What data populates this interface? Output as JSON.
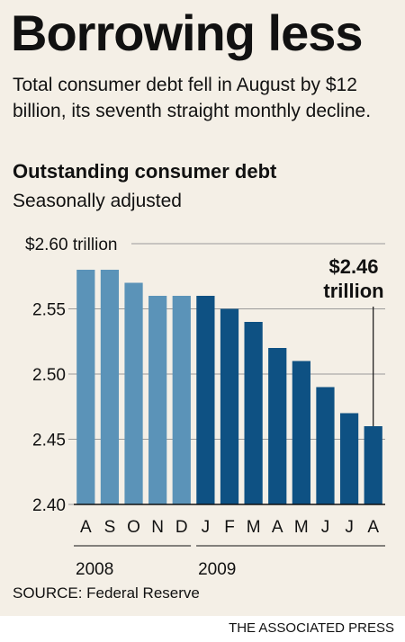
{
  "header": {
    "title": "Borrowing less",
    "subtitle": "Total consumer debt fell in August by $12 billion, its seventh straight monthly decline."
  },
  "chart_data": {
    "type": "bar",
    "title": "Outstanding consumer debt",
    "subtitle": "Seasonally adjusted",
    "categories": [
      "A",
      "S",
      "O",
      "N",
      "D",
      "J",
      "F",
      "M",
      "A",
      "M",
      "J",
      "J",
      "A"
    ],
    "years": [
      {
        "label": "2008",
        "first_index": 0,
        "last_index": 4
      },
      {
        "label": "2009",
        "first_index": 5,
        "last_index": 12
      }
    ],
    "values": [
      2.58,
      2.58,
      2.57,
      2.56,
      2.56,
      2.56,
      2.55,
      2.54,
      2.52,
      2.51,
      2.49,
      2.47,
      2.46
    ],
    "ylim": [
      2.4,
      2.6
    ],
    "yticks": [
      2.4,
      2.45,
      2.5,
      2.55,
      2.6
    ],
    "ytick_labels": [
      "2.40",
      "2.45",
      "2.50",
      "2.55",
      "$2.60 trillion"
    ],
    "annotation": {
      "value_text": "$2.46",
      "unit_text": "trillion",
      "target_index": 12
    },
    "grid": true,
    "colors": {
      "year_2008": "#5b93b8",
      "year_2009": "#0e5183",
      "grid": "#9a9a9a"
    }
  },
  "footer": {
    "source": "SOURCE: Federal Reserve",
    "credit": "THE ASSOCIATED PRESS"
  }
}
